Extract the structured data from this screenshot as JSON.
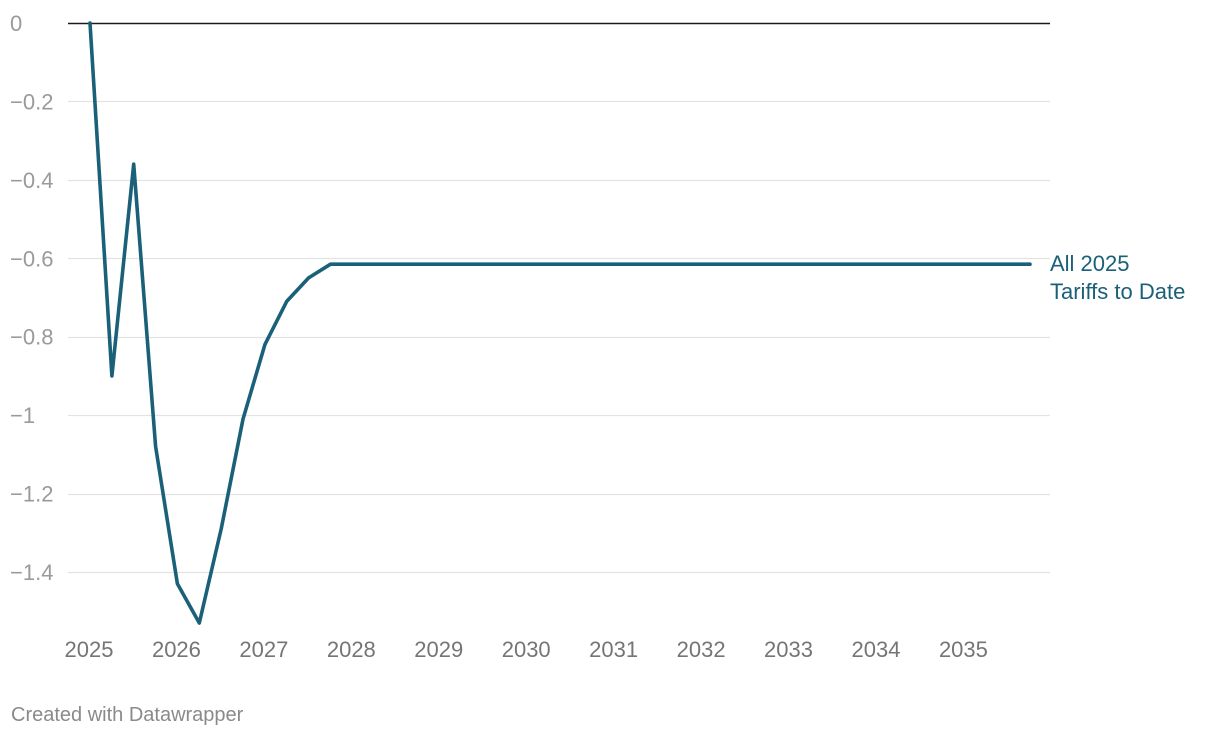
{
  "footer": {
    "credit": "Created with Datawrapper"
  },
  "colors": {
    "series": "#1b6079",
    "grid": "#e3e3e3",
    "zero_line": "#1a1a1a",
    "y_tick_text": "#9a9a9a",
    "x_tick_text": "#757575"
  },
  "chart_data": {
    "type": "line",
    "title": "",
    "xlabel": "",
    "ylabel": "",
    "xlim": [
      2025,
      2035.75
    ],
    "ylim": [
      -1.53,
      0
    ],
    "grid": true,
    "legend": "inline label at line end",
    "y_ticks": [
      0,
      -0.2,
      -0.4,
      -0.6,
      -0.8,
      -1,
      -1.2,
      -1.4
    ],
    "y_tick_labels": [
      "0",
      "−0.2",
      "−0.4",
      "−0.6",
      "−0.8",
      "−1",
      "−1.2",
      "−1.4"
    ],
    "x_ticks": [
      2025,
      2026,
      2027,
      2028,
      2029,
      2030,
      2031,
      2032,
      2033,
      2034,
      2035
    ],
    "x_tick_labels": [
      "2025",
      "2026",
      "2027",
      "2028",
      "2029",
      "2030",
      "2031",
      "2032",
      "2033",
      "2034",
      "2035"
    ],
    "series": [
      {
        "name": "All 2025 Tariffs to Date",
        "label_lines": [
          "All 2025",
          "Tariffs to Date"
        ],
        "color": "#1b6079",
        "x": [
          2025,
          2025.25,
          2025.5,
          2025.75,
          2026,
          2026.25,
          2026.5,
          2026.75,
          2027,
          2027.25,
          2027.5,
          2027.75,
          2028,
          2028.25,
          2028.5,
          2028.75,
          2029,
          2029.25,
          2029.5,
          2029.75,
          2030,
          2030.25,
          2030.5,
          2030.75,
          2031,
          2031.25,
          2031.5,
          2031.75,
          2032,
          2032.25,
          2032.5,
          2032.75,
          2033,
          2033.25,
          2033.5,
          2033.75,
          2034,
          2034.25,
          2034.5,
          2034.75,
          2035,
          2035.25,
          2035.5,
          2035.75
        ],
        "y": [
          0,
          -0.9,
          -0.36,
          -1.08,
          -1.43,
          -1.53,
          -1.29,
          -1.01,
          -0.82,
          -0.71,
          -0.65,
          -0.615,
          -0.615,
          -0.615,
          -0.615,
          -0.615,
          -0.615,
          -0.615,
          -0.615,
          -0.615,
          -0.615,
          -0.615,
          -0.615,
          -0.615,
          -0.615,
          -0.615,
          -0.615,
          -0.615,
          -0.615,
          -0.615,
          -0.615,
          -0.615,
          -0.615,
          -0.615,
          -0.615,
          -0.615,
          -0.615,
          -0.615,
          -0.615,
          -0.615,
          -0.615,
          -0.615,
          -0.615,
          -0.615
        ]
      }
    ]
  }
}
